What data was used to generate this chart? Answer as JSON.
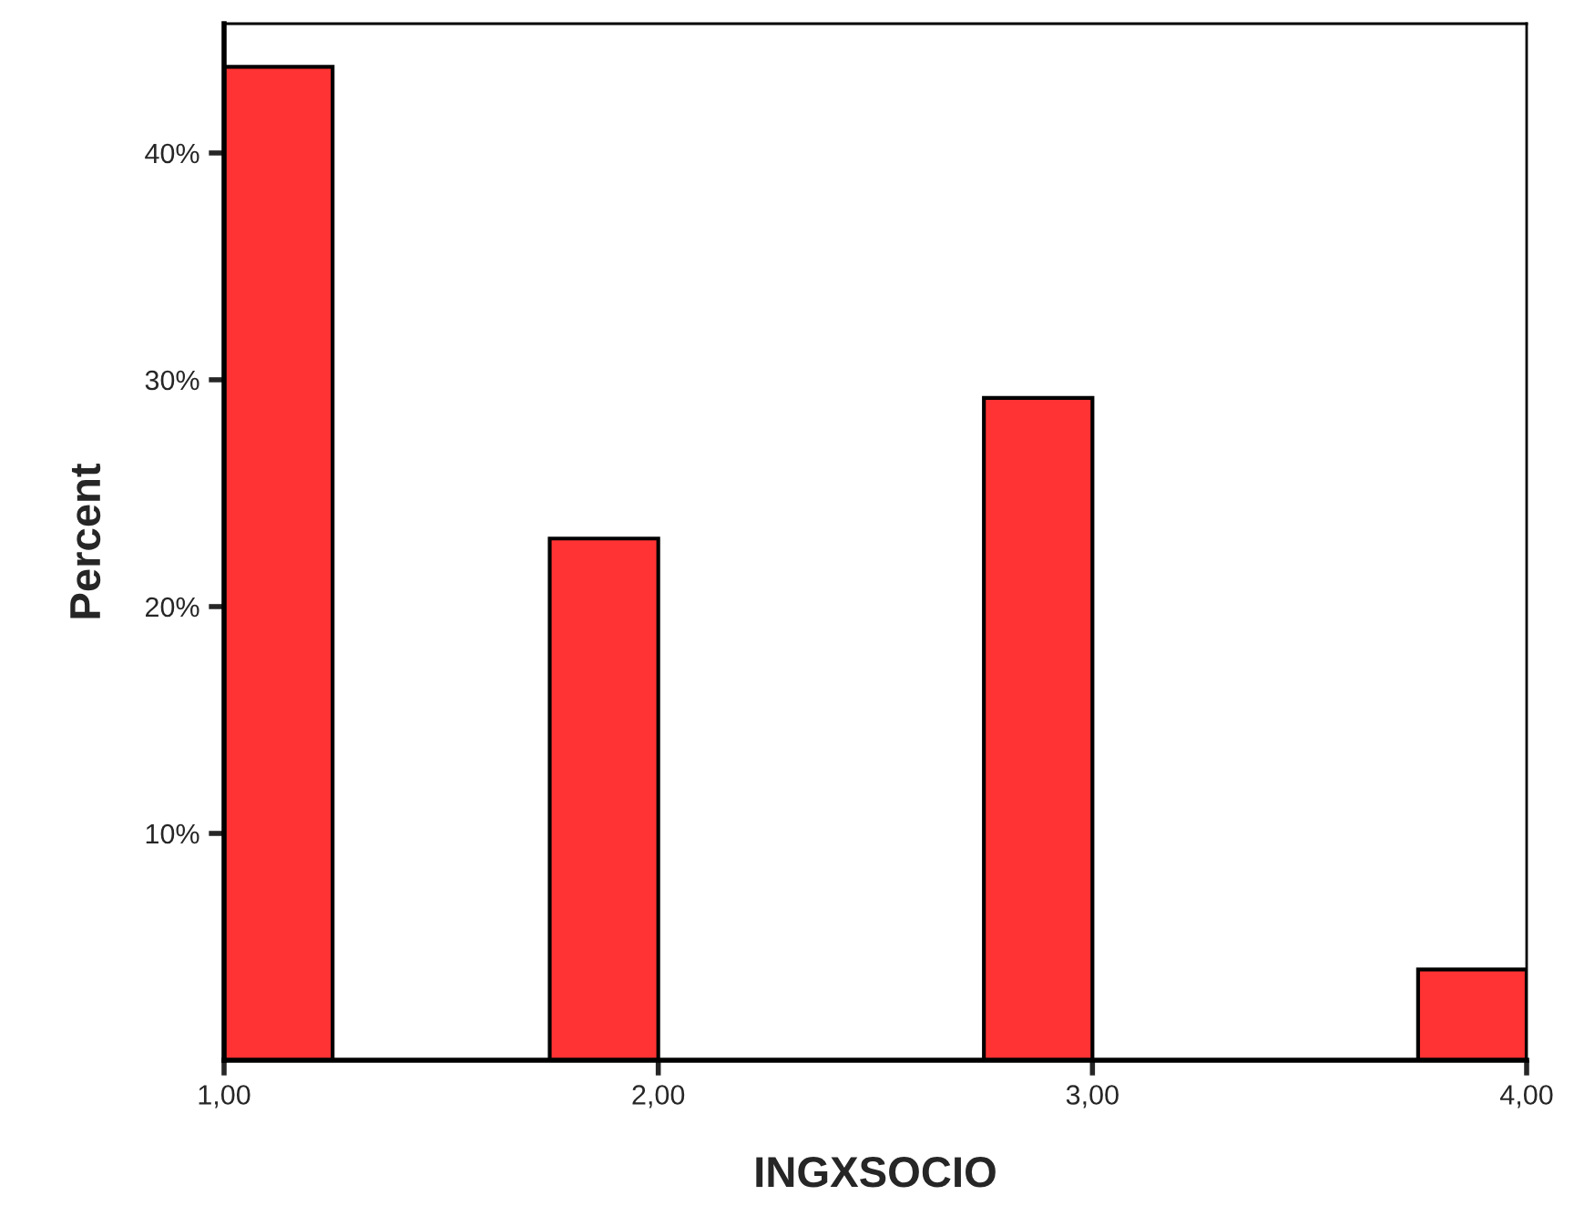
{
  "chart_data": {
    "type": "histogram",
    "xlabel": "INGXSOCIO",
    "ylabel": "Percent",
    "bins": [
      1,
      1.25,
      1.5,
      1.75,
      2,
      2.25,
      2.5,
      2.75,
      3,
      3.25,
      3.5,
      3.75,
      4
    ],
    "values": [
      43.8,
      0,
      0,
      23.0,
      0,
      0,
      0,
      29.2,
      0,
      0,
      0,
      4.0
    ],
    "color": "#ff3333",
    "xlim": [
      1,
      4
    ],
    "xticks": [
      {
        "value": 1,
        "label": "1,00"
      },
      {
        "value": 2,
        "label": "2,00"
      },
      {
        "value": 3,
        "label": "3,00"
      },
      {
        "value": 4,
        "label": "4,00"
      }
    ],
    "ylim": [
      0,
      45.7
    ],
    "yticks": [
      {
        "value": 10,
        "label": "10%"
      },
      {
        "value": 20,
        "label": "20%"
      },
      {
        "value": 30,
        "label": "30%"
      },
      {
        "value": 40,
        "label": "40%"
      }
    ],
    "grid": false,
    "legend": false
  }
}
